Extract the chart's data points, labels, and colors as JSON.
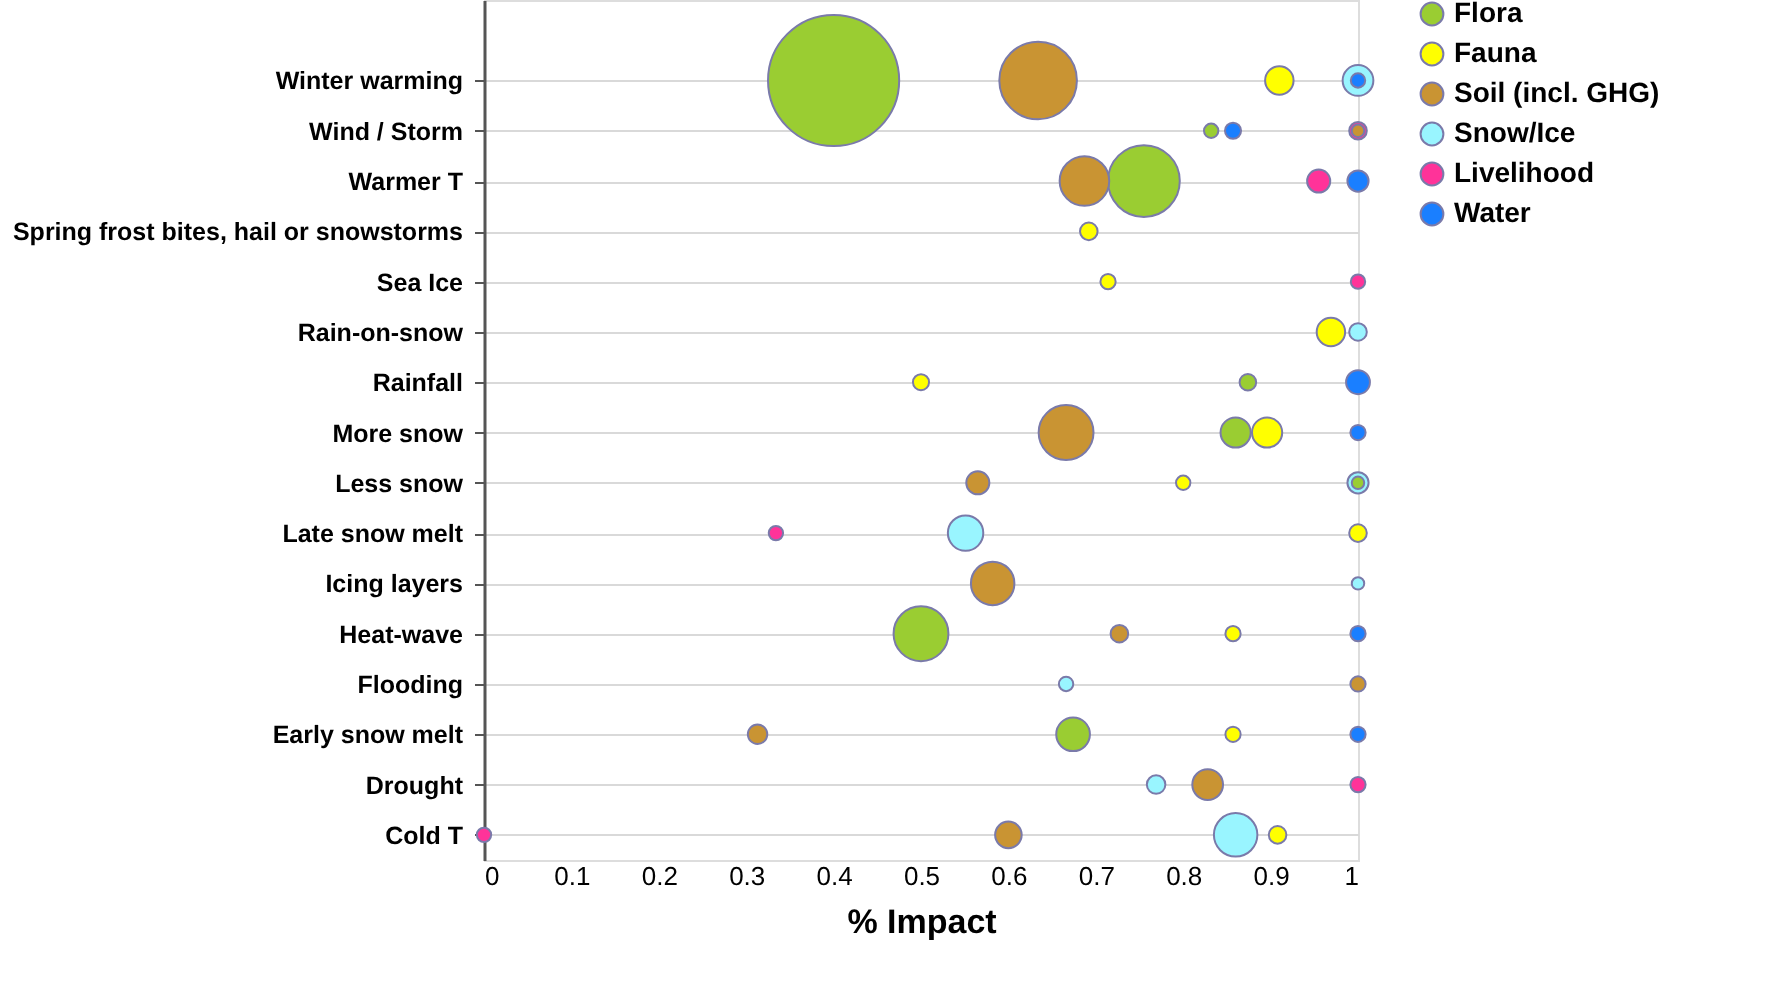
{
  "chart_data": {
    "type": "bubble",
    "orientation": "horizontal",
    "xlabel": "% Impact",
    "legend": "right",
    "grid": "y",
    "categories": [
      "Winter warming",
      "Wind / Storm",
      "Warmer T",
      "Spring frost bites, hail or snowstorms",
      "Sea Ice",
      "Rain-on-snow",
      "Rainfall",
      "More snow",
      "Less snow",
      "Late snow melt",
      "Icing layers",
      "Heat-wave",
      "Flooding",
      "Early snow melt",
      "Drought",
      "Cold T"
    ],
    "xlim": [
      0,
      1
    ],
    "xticks": [
      0,
      0.1,
      0.2,
      0.3,
      0.4,
      0.5,
      0.6,
      0.7,
      0.8,
      0.9,
      1
    ],
    "series": [
      {
        "name": "Flora",
        "color": "#9acd32",
        "values": [
          0.4,
          0.832,
          0.755,
          null,
          null,
          null,
          0.874,
          0.86,
          1.0,
          null,
          null,
          0.5,
          null,
          0.674,
          null,
          null
        ],
        "sizes": [
          1,
          0.012,
          0.3,
          null,
          null,
          null,
          0.016,
          0.053,
          0.009,
          null,
          null,
          0.175,
          null,
          0.066,
          null,
          null
        ]
      },
      {
        "name": "Fauna",
        "color": "#ffff00",
        "values": [
          0.91,
          null,
          null,
          0.692,
          0.714,
          0.969,
          0.5,
          0.896,
          0.8,
          1.0,
          null,
          0.857,
          null,
          0.857,
          null,
          0.908
        ],
        "sizes": [
          0.047,
          null,
          null,
          0.018,
          0.0135,
          0.047,
          0.015,
          0.053,
          0.012,
          0.018,
          null,
          0.0135,
          null,
          0.0135,
          null,
          0.018
        ]
      },
      {
        "name": "Soil (incl. GHG)",
        "color": "#c99433",
        "values": [
          0.634,
          1.0,
          0.687,
          null,
          null,
          null,
          null,
          0.666,
          0.565,
          null,
          0.582,
          0.727,
          1.0,
          0.313,
          0.828,
          0.6
        ],
        "sizes": [
          0.35,
          0.009,
          0.143,
          null,
          null,
          null,
          null,
          0.175,
          0.031,
          null,
          0.11,
          0.018,
          0.0135,
          0.022,
          0.055,
          0.041
        ]
      },
      {
        "name": "Snow/Ice",
        "color": "#99f5ff",
        "values": [
          1.0,
          null,
          null,
          null,
          null,
          1.0,
          null,
          null,
          1.0,
          0.551,
          1.0,
          null,
          0.666,
          null,
          0.769,
          0.86
        ],
        "sizes": [
          0.055,
          null,
          null,
          null,
          null,
          0.018,
          null,
          null,
          0.026,
          0.073,
          0.009,
          null,
          0.012,
          null,
          0.02,
          0.11
        ]
      },
      {
        "name": "Livelihood",
        "color": "#ff3399",
        "values": [
          null,
          1.0,
          0.955,
          null,
          1.0,
          null,
          null,
          null,
          null,
          0.334,
          null,
          null,
          null,
          null,
          1.0,
          0.0
        ],
        "sizes": [
          null,
          0.018,
          0.031,
          null,
          0.012,
          null,
          null,
          null,
          null,
          0.012,
          null,
          null,
          null,
          null,
          0.0135,
          0.012
        ]
      },
      {
        "name": "Water",
        "color": "#1a7fff",
        "values": [
          1.0,
          0.857,
          1.0,
          null,
          null,
          null,
          1.0,
          1.0,
          null,
          null,
          null,
          1.0,
          null,
          1.0,
          null,
          null
        ],
        "sizes": [
          0.012,
          0.015,
          0.026,
          null,
          null,
          null,
          0.033,
          0.0135,
          null,
          null,
          null,
          0.0135,
          null,
          0.0135,
          null,
          null
        ]
      }
    ]
  }
}
